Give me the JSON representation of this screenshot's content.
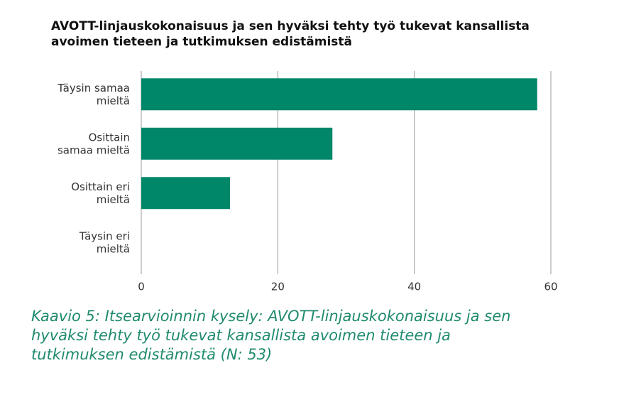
{
  "chart_data": {
    "type": "bar",
    "orientation": "horizontal",
    "title": "AVOTT-linjauskokonaisuus ja sen hyväksi tehty työ tukevat kansallista avoimen tieteen ja tutkimuksen edistämistä",
    "caption": "Kaavio 5: Itsearvioinnin kysely: AVOTT-linjauskokonaisuus ja sen hyväksi tehty työ tukevat kansallista avoimen tieteen ja tutkimuksen edistämistä (N: 53)",
    "categories": [
      "Täysin samaa mieltä",
      "Osittain samaa mieltä",
      "Osittain eri mieltä",
      "Täysin eri mieltä"
    ],
    "values": [
      58,
      28,
      13,
      0
    ],
    "color": "#00876a",
    "xlim": [
      0,
      60
    ],
    "xticks": [
      0,
      20,
      40,
      60
    ],
    "grid": true
  }
}
